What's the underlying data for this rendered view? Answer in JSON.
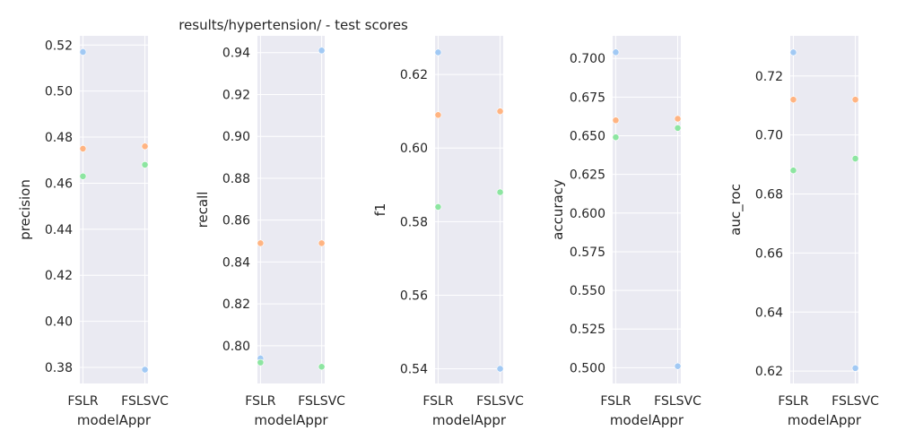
{
  "title": "results/hypertension/ - test scores",
  "colors": {
    "background": "#eaeaf2",
    "grid": "#ffffff",
    "series": [
      "#a1c9f4",
      "#ffb482",
      "#8de5a1"
    ]
  },
  "chart_data": [
    {
      "type": "scatter",
      "xlabel": "modelAppr",
      "ylabel": "precision",
      "categories": [
        "FSLR",
        "FSLSVC"
      ],
      "ylim": [
        0.373,
        0.524
      ],
      "yticks": [
        0.38,
        0.4,
        0.42,
        0.44,
        0.46,
        0.48,
        0.5,
        0.52
      ],
      "tick_labels": [
        "0.38",
        "0.40",
        "0.42",
        "0.44",
        "0.46",
        "0.48",
        "0.50",
        "0.52"
      ],
      "series": [
        {
          "values": [
            0.517,
            0.379
          ]
        },
        {
          "values": [
            0.475,
            0.476
          ]
        },
        {
          "values": [
            0.463,
            0.468
          ]
        }
      ]
    },
    {
      "type": "scatter",
      "xlabel": "modelAppr",
      "ylabel": "recall",
      "categories": [
        "FSLR",
        "FSLSVC"
      ],
      "ylim": [
        0.782,
        0.948
      ],
      "yticks": [
        0.8,
        0.82,
        0.84,
        0.86,
        0.88,
        0.9,
        0.92,
        0.94
      ],
      "tick_labels": [
        "0.80",
        "0.82",
        "0.84",
        "0.86",
        "0.88",
        "0.90",
        "0.92",
        "0.94"
      ],
      "series": [
        {
          "values": [
            0.794,
            0.941
          ]
        },
        {
          "values": [
            0.849,
            0.849
          ]
        },
        {
          "values": [
            0.792,
            0.79
          ]
        }
      ]
    },
    {
      "type": "scatter",
      "xlabel": "modelAppr",
      "ylabel": "f1",
      "categories": [
        "FSLR",
        "FSLSVC"
      ],
      "ylim": [
        0.536,
        0.6305
      ],
      "yticks": [
        0.54,
        0.56,
        0.58,
        0.6,
        0.62
      ],
      "tick_labels": [
        "0.54",
        "0.56",
        "0.58",
        "0.60",
        "0.62"
      ],
      "series": [
        {
          "values": [
            0.626,
            0.54
          ]
        },
        {
          "values": [
            0.609,
            0.61
          ]
        },
        {
          "values": [
            0.584,
            0.588
          ]
        }
      ]
    },
    {
      "type": "scatter",
      "xlabel": "modelAppr",
      "ylabel": "accuracy",
      "categories": [
        "FSLR",
        "FSLSVC"
      ],
      "ylim": [
        0.4898,
        0.7146
      ],
      "yticks": [
        0.5,
        0.525,
        0.55,
        0.575,
        0.6,
        0.625,
        0.65,
        0.675,
        0.7
      ],
      "tick_labels": [
        "0.500",
        "0.525",
        "0.550",
        "0.575",
        "0.600",
        "0.625",
        "0.650",
        "0.675",
        "0.700"
      ],
      "series": [
        {
          "values": [
            0.704,
            0.501
          ]
        },
        {
          "values": [
            0.66,
            0.661
          ]
        },
        {
          "values": [
            0.649,
            0.655
          ]
        }
      ]
    },
    {
      "type": "scatter",
      "xlabel": "modelAppr",
      "ylabel": "auc_roc",
      "categories": [
        "FSLR",
        "FSLSVC"
      ],
      "ylim": [
        0.6158,
        0.7336
      ],
      "yticks": [
        0.62,
        0.64,
        0.66,
        0.68,
        0.7,
        0.72
      ],
      "tick_labels": [
        "0.62",
        "0.64",
        "0.66",
        "0.68",
        "0.70",
        "0.72"
      ],
      "series": [
        {
          "values": [
            0.728,
            0.621
          ]
        },
        {
          "values": [
            0.712,
            0.712
          ]
        },
        {
          "values": [
            0.688,
            0.692
          ]
        }
      ]
    }
  ]
}
